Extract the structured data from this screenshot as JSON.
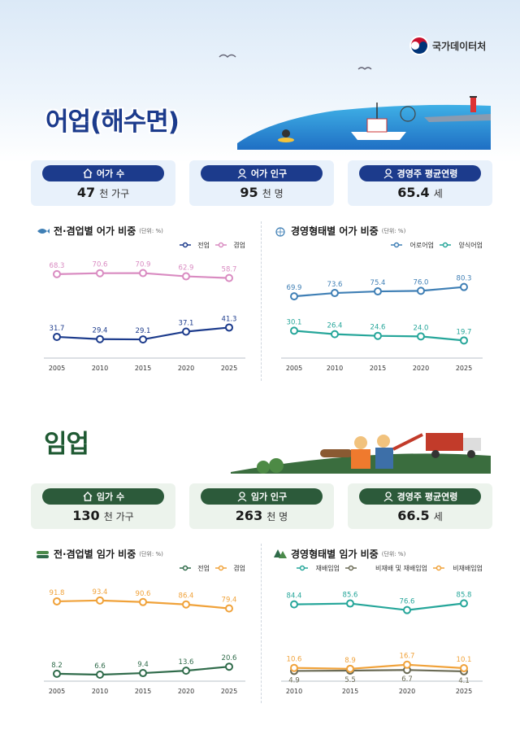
{
  "brand": {
    "name": "국가데이터처"
  },
  "fishery": {
    "title": "어업(해수면)",
    "cards": [
      {
        "label": "어가 수",
        "value": "47",
        "unit": "천 가구",
        "icon": "house-icon"
      },
      {
        "label": "어가 인구",
        "value": "95",
        "unit": "천 명",
        "icon": "person-icon"
      },
      {
        "label": "경영주 평균연령",
        "value": "65.4",
        "unit": "세",
        "icon": "person-icon"
      }
    ],
    "charts": [
      {
        "title": "전·겸업별 어가 비중",
        "unit_note": "(단위: %)",
        "icon": "fish-icon"
      },
      {
        "title": "경영형태별 어가 비중",
        "unit_note": "(단위: %)",
        "icon": "net-icon"
      }
    ]
  },
  "forestry": {
    "title": "임업",
    "cards": [
      {
        "label": "임가 수",
        "value": "130",
        "unit": "천 가구",
        "icon": "house-icon"
      },
      {
        "label": "임가 인구",
        "value": "263",
        "unit": "천 명",
        "icon": "person-icon"
      },
      {
        "label": "경영주 평균연령",
        "value": "66.5",
        "unit": "세",
        "icon": "person-icon"
      }
    ],
    "charts": [
      {
        "title": "전·겸업별 임가 비중",
        "unit_note": "(단위: %)",
        "icon": "log-icon"
      },
      {
        "title": "경영형태별 임가 비중",
        "unit_note": "(단위: %)",
        "icon": "tree-icon"
      }
    ]
  },
  "colors": {
    "navy": "#1c3b8c",
    "pink": "#d98bc1",
    "teal": "#26a69a",
    "steel": "#3f7fb5",
    "green": "#2f6b4a",
    "orange": "#f0a23a",
    "brown": "#6b6b55",
    "forest_label": "#2c5a3a"
  },
  "chart_data": [
    {
      "type": "line",
      "x": [
        "2005",
        "2010",
        "2015",
        "2020",
        "2025"
      ],
      "ylim": [
        0,
        100
      ],
      "legend": "top-right",
      "series": [
        {
          "name": "전업",
          "values": [
            31.7,
            29.4,
            29.1,
            37.1,
            41.3
          ],
          "color": "#1c3b8c"
        },
        {
          "name": "겸업",
          "values": [
            68.3,
            70.6,
            70.9,
            62.9,
            58.7
          ],
          "color": "#d98bc1"
        }
      ]
    },
    {
      "type": "line",
      "x": [
        "2005",
        "2010",
        "2015",
        "2020",
        "2025"
      ],
      "ylim": [
        0,
        100
      ],
      "legend": "top-right",
      "series": [
        {
          "name": "어로어업",
          "values": [
            69.9,
            73.6,
            75.4,
            76.0,
            80.3
          ],
          "color": "#3f7fb5"
        },
        {
          "name": "양식어업",
          "values": [
            30.1,
            26.4,
            24.6,
            24.0,
            19.7
          ],
          "color": "#26a69a"
        }
      ]
    },
    {
      "type": "line",
      "x": [
        "2005",
        "2010",
        "2015",
        "2020",
        "2025"
      ],
      "ylim": [
        0,
        100
      ],
      "legend": "top-right",
      "series": [
        {
          "name": "전업",
          "values": [
            8.2,
            6.6,
            9.4,
            13.6,
            20.6
          ],
          "color": "#2f6b4a"
        },
        {
          "name": "겸업",
          "values": [
            91.8,
            93.4,
            90.6,
            86.4,
            79.4
          ],
          "color": "#f0a23a"
        }
      ]
    },
    {
      "type": "line",
      "x": [
        "2010",
        "2015",
        "2020",
        "2025"
      ],
      "ylim": [
        0,
        100
      ],
      "legend": "top-right",
      "series": [
        {
          "name": "재배임업",
          "values": [
            84.4,
            85.6,
            76.6,
            85.8
          ],
          "color": "#26a69a"
        },
        {
          "name": "비재배 및 재배임업",
          "values": [
            4.9,
            5.5,
            6.7,
            4.1
          ],
          "color": "#6b6b55"
        },
        {
          "name": "비재배임업",
          "values": [
            10.6,
            8.9,
            16.7,
            10.1
          ],
          "color": "#f0a23a"
        }
      ]
    }
  ]
}
